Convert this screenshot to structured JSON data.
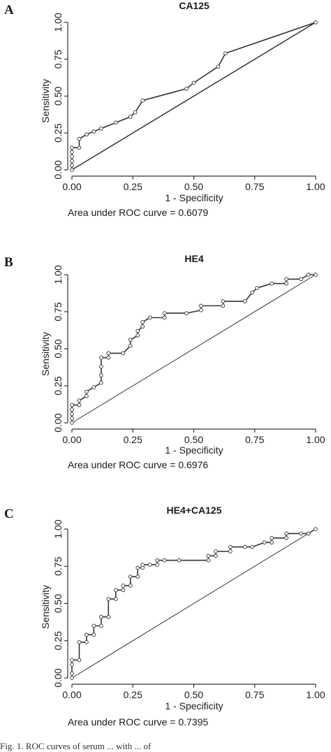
{
  "caption": "Fig. 1. ROC curves of serum ... with ... of",
  "chart_data": [
    {
      "type": "line",
      "panel": "A",
      "title": "CA125",
      "xlabel": "1 - Specificity",
      "ylabel": "Sensitivity",
      "auc_text": "Area under ROC curve = 0.6079",
      "xlim": [
        0,
        1
      ],
      "ylim": [
        0,
        1
      ],
      "x_ticks": [
        "0.00",
        "0.25",
        "0.50",
        "0.75",
        "1.00"
      ],
      "y_ticks": [
        "0.00",
        "0.25",
        "0.50",
        "0.75",
        "1.00"
      ],
      "grid": false,
      "series": [
        {
          "name": "",
          "x": [
            0,
            0,
            0,
            0,
            0,
            0,
            0.03,
            0.03,
            0.06,
            0.09,
            0.12,
            0.18,
            0.24,
            0.26,
            0.29,
            0.47,
            0.5,
            0.6,
            0.63,
            1.0
          ],
          "y": [
            0,
            0.03,
            0.06,
            0.09,
            0.12,
            0.15,
            0.15,
            0.21,
            0.24,
            0.26,
            0.28,
            0.32,
            0.36,
            0.39,
            0.47,
            0.55,
            0.59,
            0.7,
            0.79,
            1.0
          ]
        }
      ]
    },
    {
      "type": "line",
      "panel": "B",
      "title": "HE4",
      "xlabel": "1 - Specificity",
      "ylabel": "Sensitivity",
      "auc_text": "Area under ROC curve = 0.6976",
      "xlim": [
        0,
        1
      ],
      "ylim": [
        0,
        1
      ],
      "x_ticks": [
        "0.00",
        "0.25",
        "0.50",
        "0.75",
        "1.00"
      ],
      "y_ticks": [
        "0.00",
        "0.25",
        "0.50",
        "0.75",
        "1.00"
      ],
      "grid": false,
      "series": [
        {
          "name": "",
          "x": [
            0,
            0,
            0,
            0,
            0,
            0.03,
            0.03,
            0.06,
            0.06,
            0.09,
            0.12,
            0.12,
            0.12,
            0.12,
            0.15,
            0.15,
            0.21,
            0.24,
            0.24,
            0.27,
            0.27,
            0.29,
            0.29,
            0.32,
            0.38,
            0.38,
            0.47,
            0.53,
            0.53,
            0.62,
            0.62,
            0.71,
            0.74,
            0.76,
            0.82,
            0.88,
            0.88,
            0.94,
            0.97,
            1.0
          ],
          "y": [
            0,
            0.03,
            0.06,
            0.09,
            0.12,
            0.12,
            0.15,
            0.18,
            0.21,
            0.24,
            0.27,
            0.32,
            0.38,
            0.44,
            0.44,
            0.47,
            0.47,
            0.52,
            0.56,
            0.59,
            0.62,
            0.65,
            0.68,
            0.71,
            0.71,
            0.74,
            0.74,
            0.76,
            0.79,
            0.79,
            0.82,
            0.82,
            0.88,
            0.91,
            0.94,
            0.94,
            0.97,
            0.97,
            1.0,
            1.0
          ]
        }
      ]
    },
    {
      "type": "line",
      "panel": "C",
      "title": "HE4+CA125",
      "xlabel": "1 - Specificity",
      "ylabel": "Sensitivity",
      "auc_text": "Area under ROC curve = 0.7395",
      "xlim": [
        0,
        1
      ],
      "ylim": [
        0,
        1
      ],
      "x_ticks": [
        "0.00",
        "0.25",
        "0.50",
        "0.75",
        "1.00"
      ],
      "y_ticks": [
        "0.00",
        "0.25",
        "0.50",
        "0.75",
        "1.00"
      ],
      "grid": false,
      "series": [
        {
          "name": "",
          "x": [
            0,
            0,
            0,
            0,
            0.03,
            0.03,
            0.06,
            0.06,
            0.09,
            0.09,
            0.12,
            0.12,
            0.15,
            0.15,
            0.18,
            0.18,
            0.21,
            0.21,
            0.24,
            0.24,
            0.27,
            0.27,
            0.29,
            0.29,
            0.32,
            0.35,
            0.35,
            0.38,
            0.44,
            0.56,
            0.56,
            0.59,
            0.59,
            0.65,
            0.65,
            0.71,
            0.74,
            0.79,
            0.82,
            0.82,
            0.88,
            0.88,
            0.94,
            0.97,
            1.0
          ],
          "y": [
            0,
            0.03,
            0.09,
            0.12,
            0.12,
            0.24,
            0.24,
            0.29,
            0.29,
            0.35,
            0.35,
            0.41,
            0.41,
            0.53,
            0.53,
            0.59,
            0.59,
            0.62,
            0.62,
            0.68,
            0.68,
            0.74,
            0.74,
            0.76,
            0.76,
            0.76,
            0.79,
            0.79,
            0.79,
            0.79,
            0.82,
            0.82,
            0.85,
            0.85,
            0.88,
            0.88,
            0.88,
            0.91,
            0.91,
            0.94,
            0.94,
            0.97,
            0.97,
            0.97,
            1.0
          ]
        }
      ]
    }
  ]
}
